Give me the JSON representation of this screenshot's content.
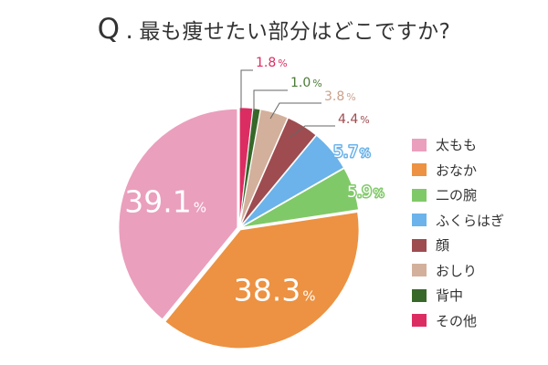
{
  "title": {
    "q": "Q",
    "qdot": ".",
    "text": "最も痩せたい部分はどこですか?"
  },
  "chart_data": {
    "type": "pie",
    "unit": "%",
    "slices": [
      {
        "name": "太もも",
        "value": 39.1,
        "color": "#ea9fbd",
        "label": "39.1"
      },
      {
        "name": "おなか",
        "value": 38.3,
        "color": "#ec9242",
        "label": "38.3"
      },
      {
        "name": "二の腕",
        "value": 5.9,
        "color": "#80c968",
        "label": "5.9"
      },
      {
        "name": "ふくらはぎ",
        "value": 5.7,
        "color": "#6bb3ea",
        "label": "5.7"
      },
      {
        "name": "顔",
        "value": 4.4,
        "color": "#9e4c50",
        "label": "4.4"
      },
      {
        "name": "おしり",
        "value": 3.8,
        "color": "#d3b09c",
        "label": "3.8"
      },
      {
        "name": "背中",
        "value": 1.0,
        "color": "#376829",
        "label": "1.0"
      },
      {
        "name": "その他",
        "value": 1.8,
        "color": "#dc2d62",
        "label": "1.8"
      }
    ],
    "legend_position": "right"
  }
}
